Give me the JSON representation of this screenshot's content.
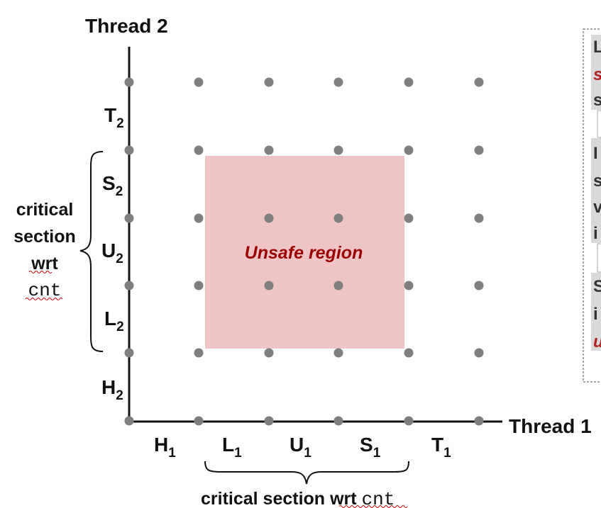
{
  "axes": {
    "y_label": "Thread 2",
    "x_label": "Thread 1"
  },
  "thread1_steps": [
    {
      "main": "H",
      "sub": "1"
    },
    {
      "main": "L",
      "sub": "1"
    },
    {
      "main": "U",
      "sub": "1"
    },
    {
      "main": "S",
      "sub": "1"
    },
    {
      "main": "T",
      "sub": "1"
    }
  ],
  "thread2_steps": [
    {
      "main": "T",
      "sub": "2"
    },
    {
      "main": "S",
      "sub": "2"
    },
    {
      "main": "U",
      "sub": "2"
    },
    {
      "main": "L",
      "sub": "2"
    },
    {
      "main": "H",
      "sub": "2"
    }
  ],
  "region": {
    "label": "Unsafe region",
    "color": "#efc4c4",
    "text_color": "#9b0000"
  },
  "left_brace_text": {
    "line1": "critical",
    "line2": "section",
    "line3": "wrt",
    "line4": "cnt"
  },
  "bottom_brace_text": {
    "prefix": "critical section",
    "wrt": "wrt",
    "code": "cnt"
  },
  "colors": {
    "dot": "#7f7f7f",
    "axis": "#111111",
    "panel_bg": "#d9d9d9",
    "panel_border": "#8c8c8c",
    "panel_accent": "#b22222"
  },
  "side_panel_fragments": [
    {
      "text": "L",
      "style": "dark"
    },
    {
      "text": "s",
      "style": "accent"
    },
    {
      "text": "s",
      "style": "dark"
    },
    {
      "text": "I",
      "style": "dark"
    },
    {
      "text": "s",
      "style": "dark"
    },
    {
      "text": "v",
      "style": "dark"
    },
    {
      "text": "i",
      "style": "dark"
    },
    {
      "text": "S",
      "style": "dark"
    },
    {
      "text": "i",
      "style": "dark"
    },
    {
      "text": "u",
      "style": "accent"
    }
  ]
}
